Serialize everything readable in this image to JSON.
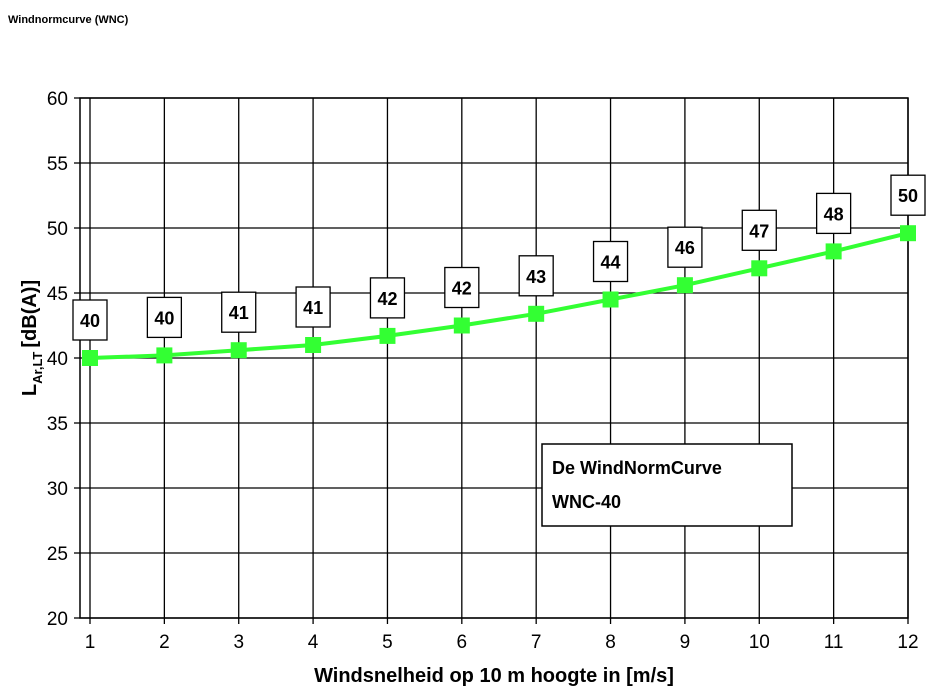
{
  "page_title": "Windnormcurve (WNC)",
  "chart_data": {
    "type": "line",
    "x": [
      1,
      2,
      3,
      4,
      5,
      6,
      7,
      8,
      9,
      10,
      11,
      12
    ],
    "series": [
      {
        "values": [
          40,
          40.2,
          40.6,
          41,
          41.7,
          42.5,
          43.4,
          44.5,
          45.6,
          46.9,
          48.2,
          49.6
        ],
        "data_labels": [
          "40",
          "40",
          "41",
          "41",
          "42",
          "42",
          "43",
          "44",
          "46",
          "47",
          "48",
          "50"
        ],
        "color": "#33ff33",
        "marker": "square"
      }
    ],
    "xlabel": "Windsnelheid op 10 m hoogte in [m/s]",
    "ylabel": "L",
    "ylabel_subscript": "Ar,LT",
    "ylabel_suffix": "[dB(A)]",
    "xlim": [
      1,
      12
    ],
    "ylim": [
      20,
      60
    ],
    "yticks": [
      20,
      25,
      30,
      35,
      40,
      45,
      50,
      55,
      60
    ],
    "xticks": [
      1,
      2,
      3,
      4,
      5,
      6,
      7,
      8,
      9,
      10,
      11,
      12
    ],
    "grid": true,
    "legend_lines": [
      "De WindNormCurve",
      "WNC-40"
    ],
    "legend_placement": "lower-right"
  }
}
